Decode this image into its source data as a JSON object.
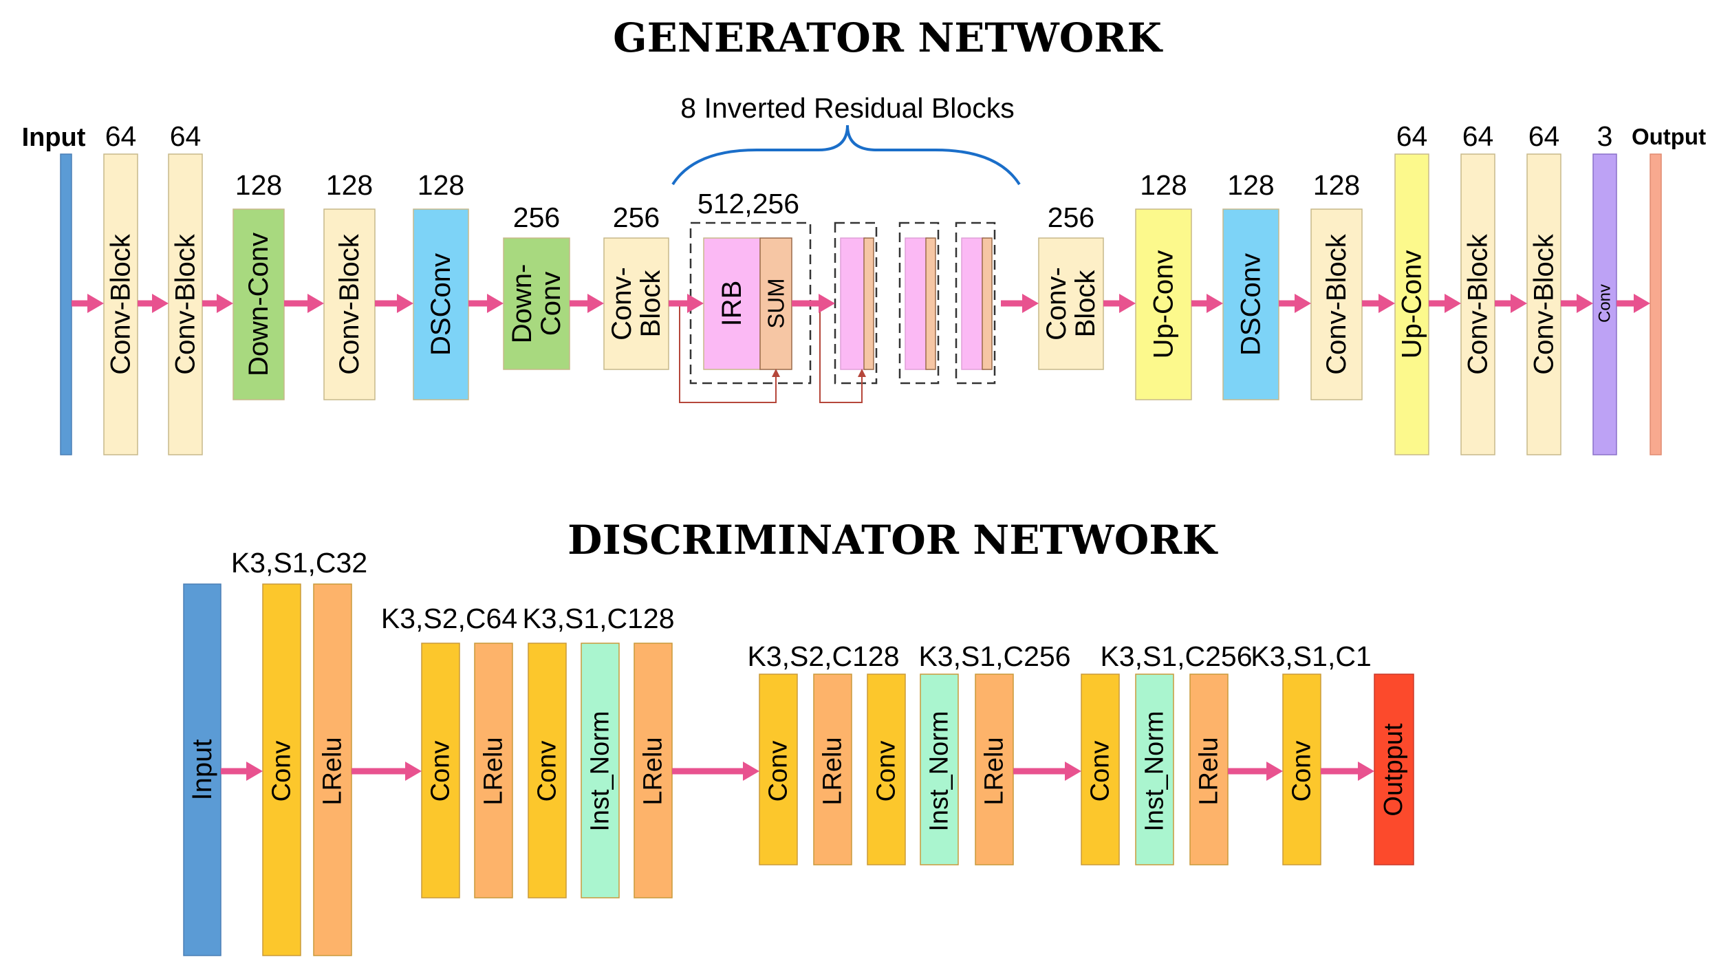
{
  "generator": {
    "title": "GENERATOR NETWORK",
    "input_label": "Input",
    "output_label": "Output",
    "brace_label": "8 Inverted Residual Blocks",
    "blocks": [
      {
        "name": "Conv-Block",
        "channels": "64",
        "color": "#fdefc7"
      },
      {
        "name": "Conv-Block",
        "channels": "64",
        "color": "#fdefc7"
      },
      {
        "name": "Down-Conv",
        "channels": "128",
        "color": "#a8d97f"
      },
      {
        "name": "Conv-Block",
        "channels": "128",
        "color": "#fdefc7"
      },
      {
        "name": "DSConv",
        "channels": "128",
        "color": "#7dd3f7"
      },
      {
        "name": "Down-Conv",
        "channels": "256",
        "color": "#a8d97f"
      },
      {
        "name": "Conv-Block",
        "channels": "256",
        "color": "#fdefc7"
      },
      {
        "name": "IRB",
        "channels": "512,256",
        "color": "#fbb9f4"
      },
      {
        "name": "SUM",
        "color": "#f6c6a4"
      },
      {
        "name": "Conv-Block",
        "channels": "256",
        "color": "#fdefc7"
      },
      {
        "name": "Up-Conv",
        "channels": "128",
        "color": "#fcf98c"
      },
      {
        "name": "DSConv",
        "channels": "128",
        "color": "#7dd3f7"
      },
      {
        "name": "Conv-Block",
        "channels": "128",
        "color": "#fdefc7"
      },
      {
        "name": "Up-Conv",
        "channels": "64",
        "color": "#fcf98c"
      },
      {
        "name": "Conv-Block",
        "channels": "64",
        "color": "#fdefc7"
      },
      {
        "name": "Conv-Block",
        "channels": "64",
        "color": "#fdefc7"
      },
      {
        "name": "Conv",
        "channels": "3",
        "color": "#bda2f5"
      }
    ],
    "input_color": "#5b9bd5",
    "output_color": "#f8a98f"
  },
  "discriminator": {
    "title": "DISCRIMINATOR NETWORK",
    "input_label": "Input",
    "output_label": "Outpput",
    "specs": [
      "K3,S1,C32",
      "K3,S2,C64",
      "K3,S1,C128",
      "K3,S2,C128",
      "K3,S1,C256",
      "K3,S1,C256",
      "K3,S1,C1"
    ],
    "layers": [
      "Conv",
      "LRelu",
      "Conv",
      "LRelu",
      "Conv",
      "Inst_Norm",
      "LRelu",
      "Conv",
      "LRelu",
      "Conv",
      "Inst_Norm",
      "LRelu",
      "Conv",
      "Inst_Norm",
      "LRelu",
      "Conv"
    ],
    "colors": {
      "input": "#5b9bd5",
      "conv": "#fcc72c",
      "lrelu": "#fdb36a",
      "inst_norm": "#aaf5cf",
      "output": "#fc4a2c"
    }
  },
  "colors": {
    "arrow": "#e8528f",
    "brace": "#1a6ec9",
    "skip": "#b5463a"
  }
}
